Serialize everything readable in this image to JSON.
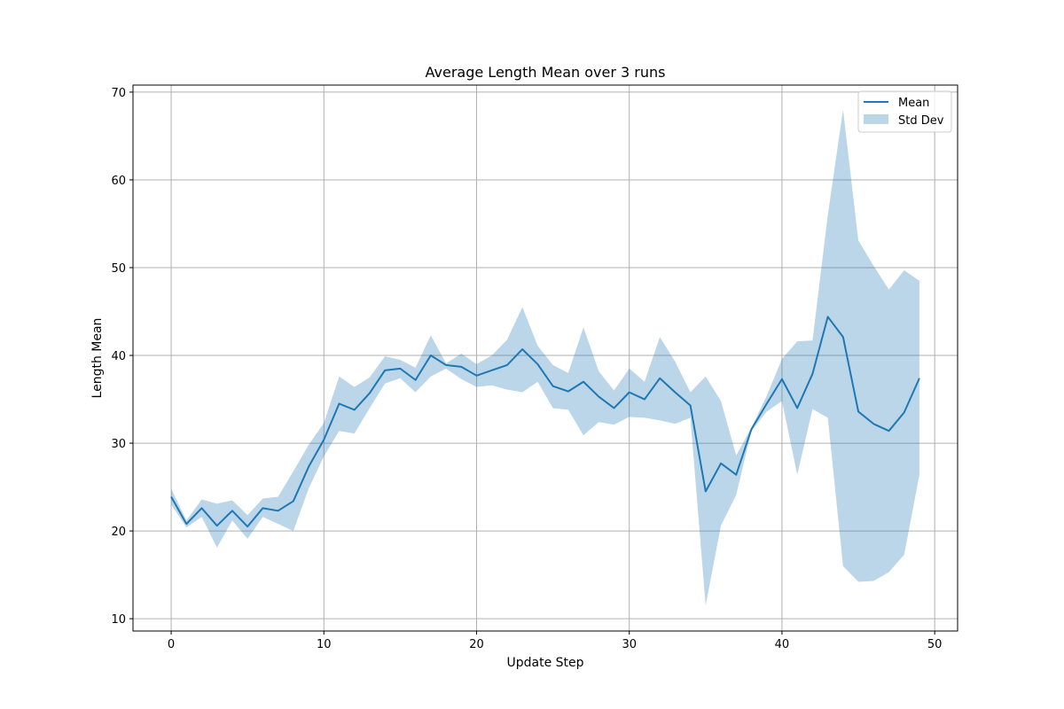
{
  "chart_data": {
    "type": "line",
    "title": "Average Length Mean over 3 runs",
    "xlabel": "Update Step",
    "ylabel": "Length Mean",
    "xlim": [
      -2.5,
      51.5
    ],
    "ylim": [
      8.6,
      70.8
    ],
    "xticks": [
      0,
      10,
      20,
      30,
      40,
      50
    ],
    "yticks": [
      10,
      20,
      30,
      40,
      50,
      60,
      70
    ],
    "grid": true,
    "legend_position": "top-right",
    "colors": {
      "mean": "#1f77b4",
      "band": "#1f77b4"
    },
    "band_opacity": 0.3,
    "series": [
      {
        "name": "Mean",
        "kind": "line",
        "x": [
          0,
          1,
          2,
          3,
          4,
          5,
          6,
          7,
          8,
          9,
          10,
          11,
          12,
          13,
          14,
          15,
          16,
          17,
          18,
          19,
          20,
          21,
          22,
          23,
          24,
          25,
          26,
          27,
          28,
          29,
          30,
          31,
          32,
          33,
          34,
          35,
          36,
          37,
          38,
          39,
          40,
          41,
          42,
          43,
          44,
          45,
          46,
          47,
          48,
          49
        ],
        "y": [
          23.9,
          20.8,
          22.6,
          20.6,
          22.3,
          20.5,
          22.6,
          22.3,
          23.4,
          27.3,
          30.4,
          34.5,
          33.8,
          35.7,
          38.3,
          38.5,
          37.2,
          40.0,
          38.9,
          38.7,
          37.7,
          38.3,
          38.9,
          40.7,
          39.0,
          36.5,
          35.9,
          37.0,
          35.3,
          34.0,
          35.8,
          35.0,
          37.4,
          35.8,
          34.3,
          24.5,
          27.7,
          26.4,
          31.6,
          34.5,
          37.3,
          34.0,
          37.9,
          44.4,
          42.1,
          33.6,
          32.2,
          31.4,
          33.5,
          37.4
        ]
      },
      {
        "name": "Std Dev",
        "kind": "band",
        "lower": [
          23.0,
          20.4,
          21.6,
          18.1,
          21.2,
          19.1,
          21.6,
          20.8,
          20.0,
          24.8,
          28.5,
          31.4,
          31.1,
          34.0,
          36.8,
          37.4,
          35.8,
          37.6,
          38.5,
          37.3,
          36.4,
          36.6,
          36.1,
          35.8,
          37.0,
          34.0,
          33.8,
          30.9,
          32.4,
          32.1,
          33.0,
          32.9,
          32.6,
          32.2,
          32.9,
          11.5,
          20.6,
          24.1,
          31.4,
          33.6,
          34.8,
          26.4,
          33.9,
          32.9,
          16.0,
          14.2,
          14.3,
          15.3,
          17.3,
          26.4
        ],
        "upper": [
          24.8,
          21.2,
          23.6,
          23.1,
          23.5,
          21.8,
          23.7,
          23.9,
          26.8,
          29.8,
          32.3,
          37.6,
          36.4,
          37.5,
          39.9,
          39.5,
          38.6,
          42.3,
          39.1,
          40.2,
          39.0,
          40.0,
          41.8,
          45.5,
          41.1,
          38.9,
          38.0,
          43.2,
          38.2,
          36.0,
          38.5,
          37.0,
          42.1,
          39.3,
          35.8,
          37.6,
          34.8,
          28.6,
          31.8,
          35.4,
          39.6,
          41.6,
          41.7,
          56.0,
          68.0,
          53.1,
          50.2,
          47.5,
          49.7,
          48.5
        ]
      }
    ]
  }
}
